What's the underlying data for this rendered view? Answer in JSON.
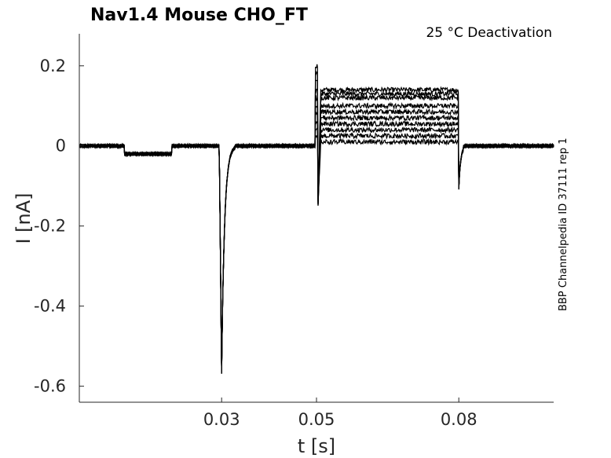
{
  "chart_data": {
    "type": "line",
    "title": "Nav1.4  Mouse  CHO_FT",
    "annotation": "25 °C  Deactivation",
    "side_label": "BBP Channelpedia ID 37111 rep 1",
    "xlabel": "t [s]",
    "ylabel": "I [nA]",
    "xlim": [
      0.0,
      0.1
    ],
    "ylim": [
      -0.64,
      0.28
    ],
    "x_ticks": [
      0.03,
      0.05,
      0.08
    ],
    "x_tick_labels": [
      "0.03",
      "0.05",
      "0.08"
    ],
    "y_ticks": [
      0.2,
      0,
      -0.2,
      -0.4,
      -0.6
    ],
    "y_tick_labels": [
      "0.2",
      "0",
      "-0.2",
      "-0.4",
      "-0.6"
    ],
    "grid": false,
    "line_color": "#000000",
    "protocol": {
      "baseline_nA": 0.0,
      "prepulse_window_s": [
        0.0095,
        0.0195
      ],
      "prepulse_level_nA": -0.02,
      "activation_peak": {
        "t_s": 0.0298,
        "min_nA": -0.565
      },
      "step_window_s": [
        0.0497,
        0.08
      ],
      "step_spike_nA": {
        "t_s": 0.0497,
        "max_nA": 0.2,
        "min_nA": -0.155
      },
      "tail_levels_nA": [
        0.14,
        0.13,
        0.12,
        0.1,
        0.085,
        0.07,
        0.055,
        0.04,
        0.025,
        0.01
      ],
      "tail_spike_nA": {
        "t_s": 0.08,
        "min_nA": -0.105
      }
    },
    "series_count": 10
  }
}
